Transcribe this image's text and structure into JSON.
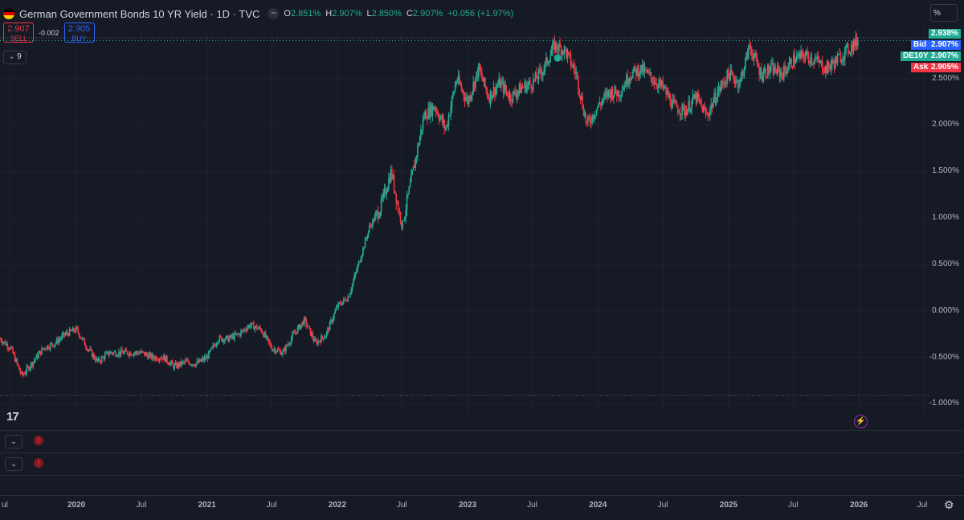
{
  "header": {
    "title": "German Government Bonds 10 YR Yield · 1D · TVC",
    "ohlc": [
      {
        "k": "O",
        "v": "2.851%"
      },
      {
        "k": "H",
        "v": "2.907%"
      },
      {
        "k": "L",
        "v": "2.850%"
      },
      {
        "k": "C",
        "v": "2.907%"
      }
    ],
    "change": "+0.056 (+1.97%)"
  },
  "trade": {
    "sell_price": "2.907",
    "sell_label": "SELL",
    "spread": "-0.002",
    "buy_price": "2.905",
    "buy_label": "BUY"
  },
  "indicators_count": "9",
  "price_scale_unit": "%",
  "price_labels": {
    "high": {
      "text": "2.938%",
      "color": "#22ab94"
    },
    "bid": {
      "tag": "Bid",
      "text": "2.907%",
      "color": "#2962ff"
    },
    "last": {
      "tag": "DE10Y",
      "text": "2.907%",
      "color": "#22ab94"
    },
    "ask": {
      "tag": "Ask",
      "text": "2.905%",
      "color": "#f23645"
    }
  },
  "colors": {
    "up": "#22ab94",
    "down": "#f23645",
    "background": "#161a25",
    "grid": "#1f2330"
  },
  "icons": [
    "minus-icon",
    "chevron-down-icon",
    "alert-icon",
    "lightning-icon",
    "gear-icon",
    "tradingview-logo",
    "germany-flag-icon"
  ],
  "chart_data": {
    "type": "candlestick",
    "title": "German Government Bonds 10 YR Yield",
    "timeframe": "1D",
    "y_tick_labels": [
      "2.500%",
      "2.000%",
      "1.500%",
      "1.000%",
      "0.500%",
      "0.000%",
      "-0.500%",
      "-1.000%"
    ],
    "y_ticks": [
      2.5,
      2.0,
      1.5,
      1.0,
      0.5,
      0.0,
      -0.5,
      -1.0
    ],
    "ylim": [
      -1.1,
      3.05
    ],
    "x_tick_labels": [
      "Jul",
      "2020",
      "Jul",
      "2021",
      "Jul",
      "2022",
      "Jul",
      "2023",
      "Jul",
      "2024",
      "Jul",
      "2025",
      "Jul",
      "2026",
      "Jul"
    ],
    "x_ticks": [
      "2019-07",
      "2020-01",
      "2020-07",
      "2021-01",
      "2021-07",
      "2022-01",
      "2022-07",
      "2023-01",
      "2023-07",
      "2024-01",
      "2024-07",
      "2025-01",
      "2025-07",
      "2026-01",
      "2026-07"
    ],
    "xlim": [
      "2019-06-01",
      "2026-07-20"
    ],
    "last_value": 2.907,
    "highest_value": 2.938,
    "lowest_value": -0.91,
    "series": [
      {
        "values": [
          [
            "2019-06",
            -0.3
          ],
          [
            "2019-07",
            -0.4
          ],
          [
            "2019-08",
            -0.7
          ],
          [
            "2019-09",
            -0.55
          ],
          [
            "2019-10",
            -0.4
          ],
          [
            "2019-11",
            -0.35
          ],
          [
            "2019-12",
            -0.25
          ],
          [
            "2020-01",
            -0.2
          ],
          [
            "2020-02",
            -0.4
          ],
          [
            "2020-03",
            -0.55
          ],
          [
            "2020-04",
            -0.45
          ],
          [
            "2020-05",
            -0.45
          ],
          [
            "2020-06",
            -0.45
          ],
          [
            "2020-07",
            -0.45
          ],
          [
            "2020-08",
            -0.5
          ],
          [
            "2020-09",
            -0.5
          ],
          [
            "2020-10",
            -0.6
          ],
          [
            "2020-11",
            -0.55
          ],
          [
            "2020-12",
            -0.57
          ],
          [
            "2021-01",
            -0.5
          ],
          [
            "2021-02",
            -0.3
          ],
          [
            "2021-03",
            -0.3
          ],
          [
            "2021-04",
            -0.25
          ],
          [
            "2021-05",
            -0.15
          ],
          [
            "2021-06",
            -0.2
          ],
          [
            "2021-07",
            -0.4
          ],
          [
            "2021-08",
            -0.45
          ],
          [
            "2021-09",
            -0.25
          ],
          [
            "2021-10",
            -0.1
          ],
          [
            "2021-11",
            -0.35
          ],
          [
            "2021-12",
            -0.25
          ],
          [
            "2022-01",
            0.05
          ],
          [
            "2022-02",
            0.15
          ],
          [
            "2022-03",
            0.5
          ],
          [
            "2022-04",
            0.9
          ],
          [
            "2022-05",
            1.1
          ],
          [
            "2022-06",
            1.5
          ],
          [
            "2022-07",
            0.9
          ],
          [
            "2022-08",
            1.5
          ],
          [
            "2022-09",
            2.1
          ],
          [
            "2022-10",
            2.2
          ],
          [
            "2022-11",
            1.95
          ],
          [
            "2022-12",
            2.5
          ],
          [
            "2023-01",
            2.25
          ],
          [
            "2023-02",
            2.6
          ],
          [
            "2023-03",
            2.3
          ],
          [
            "2023-04",
            2.45
          ],
          [
            "2023-05",
            2.3
          ],
          [
            "2023-06",
            2.4
          ],
          [
            "2023-07",
            2.45
          ],
          [
            "2023-08",
            2.6
          ],
          [
            "2023-09",
            2.85
          ],
          [
            "2023-10",
            2.8
          ],
          [
            "2023-11",
            2.55
          ],
          [
            "2023-12",
            2.0
          ],
          [
            "2024-01",
            2.2
          ],
          [
            "2024-02",
            2.35
          ],
          [
            "2024-03",
            2.35
          ],
          [
            "2024-04",
            2.55
          ],
          [
            "2024-05",
            2.6
          ],
          [
            "2024-06",
            2.5
          ],
          [
            "2024-07",
            2.4
          ],
          [
            "2024-08",
            2.2
          ],
          [
            "2024-09",
            2.15
          ],
          [
            "2024-10",
            2.3
          ],
          [
            "2024-11",
            2.1
          ],
          [
            "2024-12",
            2.35
          ],
          [
            "2025-01",
            2.55
          ],
          [
            "2025-02",
            2.45
          ],
          [
            "2025-03",
            2.85
          ],
          [
            "2025-04",
            2.55
          ],
          [
            "2025-05",
            2.6
          ],
          [
            "2025-06",
            2.55
          ],
          [
            "2025-07",
            2.7
          ],
          [
            "2025-08",
            2.75
          ],
          [
            "2025-09",
            2.7
          ],
          [
            "2025-10",
            2.6
          ],
          [
            "2025-11",
            2.7
          ],
          [
            "2025-12",
            2.907
          ]
        ]
      }
    ]
  },
  "x_axis_first_label": "ul"
}
